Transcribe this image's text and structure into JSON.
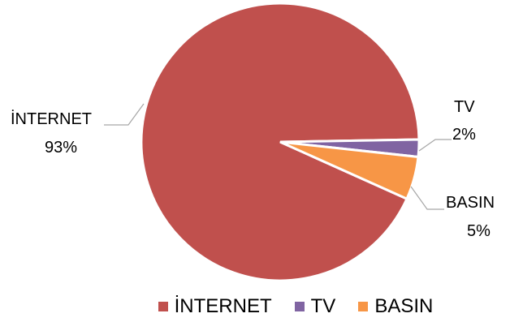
{
  "chart_data": {
    "type": "pie",
    "categories": [
      "İNTERNET",
      "TV",
      "BASIN"
    ],
    "values": [
      93,
      2,
      5
    ],
    "value_labels": [
      "93%",
      "2%",
      "5%"
    ],
    "colors": [
      "#C0504D",
      "#8064A2",
      "#F79646"
    ],
    "legend_position": "bottom"
  }
}
